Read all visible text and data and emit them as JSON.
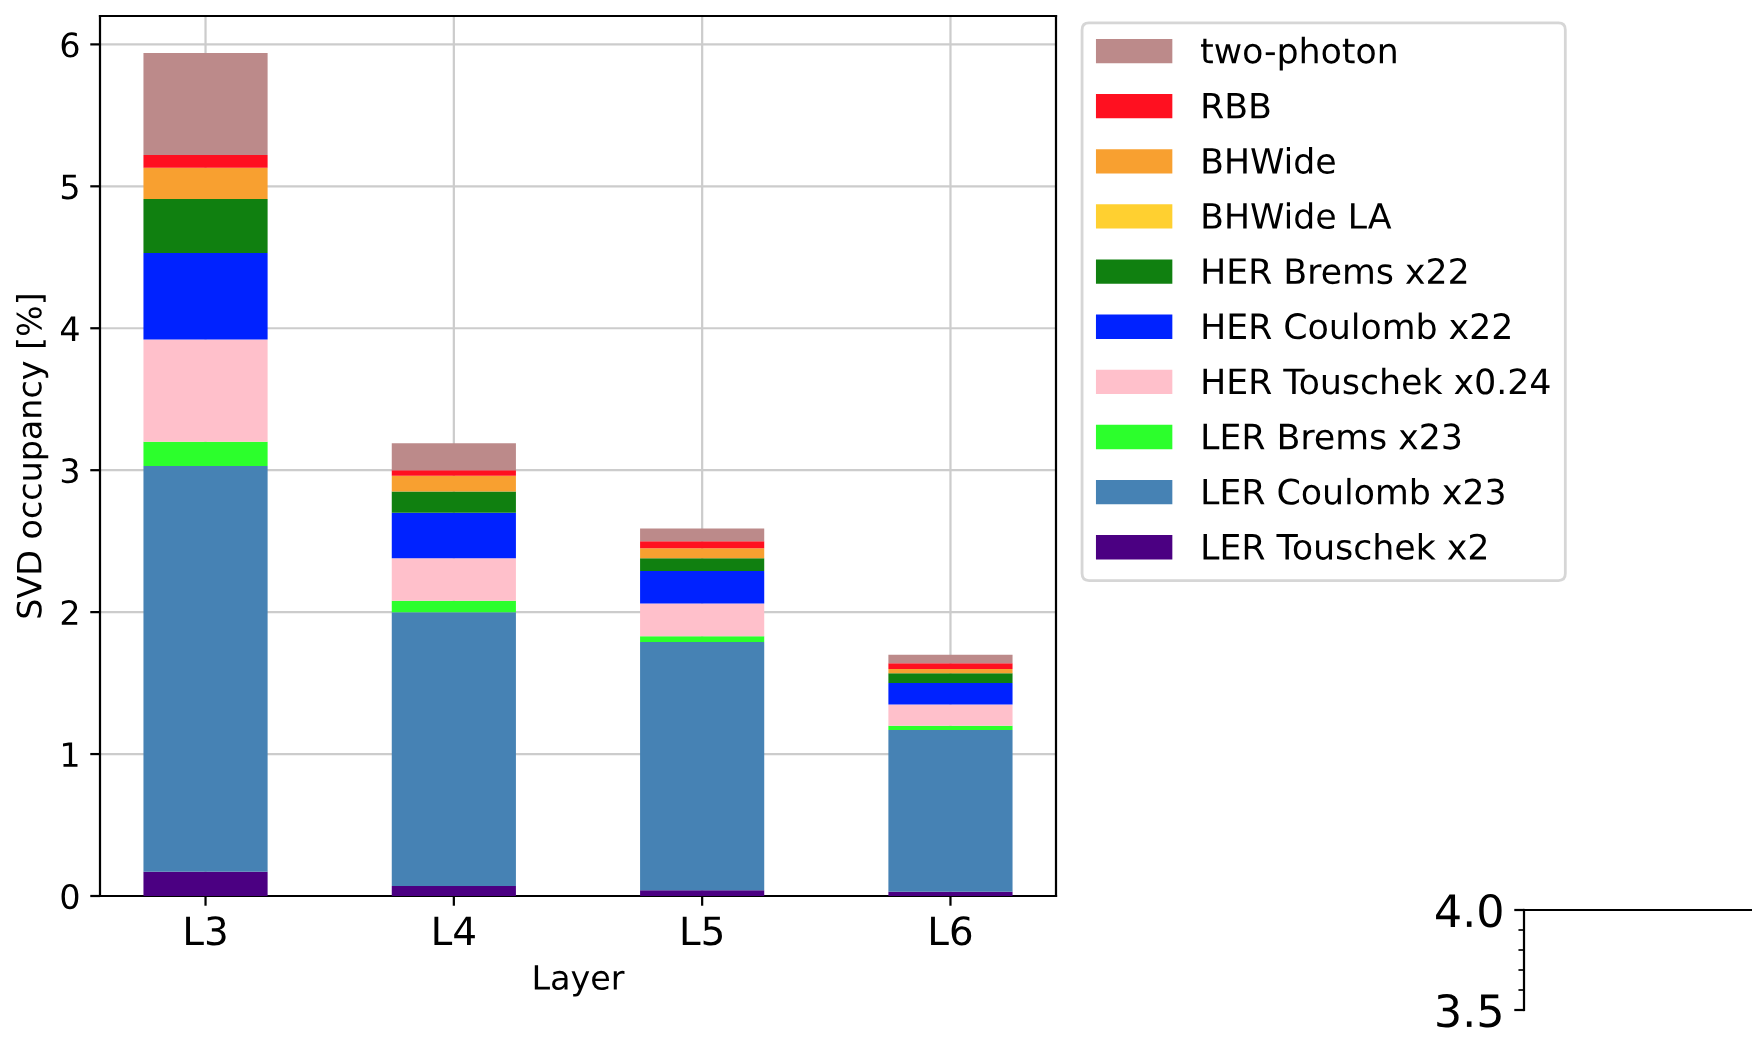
{
  "chart_data": [
    {
      "type": "bar",
      "stacked": true,
      "xlabel": "Layer",
      "ylabel": "SVD occupancy [%]",
      "categories": [
        "L3",
        "L4",
        "L5",
        "L6"
      ],
      "ylim": [
        0,
        6.2
      ],
      "yticks": [
        0,
        1,
        2,
        3,
        4,
        5,
        6
      ],
      "grid": true,
      "legend": "right",
      "series": [
        {
          "name": "LER Touschek x2",
          "color": "#4b0082",
          "values": [
            0.17,
            0.07,
            0.04,
            0.03
          ]
        },
        {
          "name": "LER Coulomb x23",
          "color": "#4682b4",
          "values": [
            2.86,
            1.93,
            1.75,
            1.14
          ]
        },
        {
          "name": "LER Brems x23",
          "color": "#2cff2c",
          "values": [
            0.17,
            0.08,
            0.04,
            0.03
          ]
        },
        {
          "name": "HER Touschek x0.24",
          "color": "#ffc0cb",
          "values": [
            0.72,
            0.3,
            0.23,
            0.15
          ]
        },
        {
          "name": "HER Coulomb x22",
          "color": "#0022ff",
          "values": [
            0.61,
            0.32,
            0.23,
            0.15
          ]
        },
        {
          "name": "HER Brems x22",
          "color": "#108010",
          "values": [
            0.38,
            0.15,
            0.09,
            0.07
          ]
        },
        {
          "name": "BHWide LA",
          "color": "#ffd030",
          "values": [
            0,
            0,
            0,
            0
          ]
        },
        {
          "name": "BHWide",
          "color": "#f8a030",
          "values": [
            0.22,
            0.11,
            0.07,
            0.03
          ]
        },
        {
          "name": "RBB",
          "color": "#ff1020",
          "values": [
            0.09,
            0.04,
            0.05,
            0.04
          ]
        },
        {
          "name": "two-photon",
          "color": "#bc8a8a",
          "values": [
            0.72,
            0.19,
            0.09,
            0.06
          ]
        }
      ]
    },
    {
      "type": "other",
      "annotations": [
        "4.0",
        "3.5"
      ]
    }
  ]
}
